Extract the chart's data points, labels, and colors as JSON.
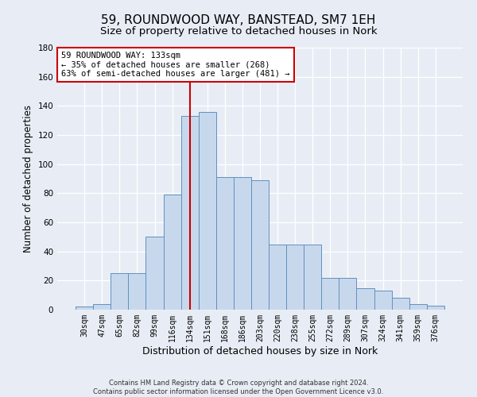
{
  "title": "59, ROUNDWOOD WAY, BANSTEAD, SM7 1EH",
  "subtitle": "Size of property relative to detached houses in Nork",
  "xlabel": "Distribution of detached houses by size in Nork",
  "ylabel": "Number of detached properties",
  "categories": [
    "30sqm",
    "47sqm",
    "65sqm",
    "82sqm",
    "99sqm",
    "116sqm",
    "134sqm",
    "151sqm",
    "168sqm",
    "186sqm",
    "203sqm",
    "220sqm",
    "238sqm",
    "255sqm",
    "272sqm",
    "289sqm",
    "307sqm",
    "324sqm",
    "341sqm",
    "359sqm",
    "376sqm"
  ],
  "bar_heights": [
    2,
    4,
    25,
    25,
    50,
    79,
    133,
    136,
    91,
    91,
    89,
    45,
    45,
    45,
    22,
    22,
    15,
    13,
    8,
    4,
    3
  ],
  "bar_color": "#c8d8ec",
  "bar_edge_color": "#6090c0",
  "vline_color": "#cc0000",
  "annotation_text": "59 ROUNDWOOD WAY: 133sqm\n← 35% of detached houses are smaller (268)\n63% of semi-detached houses are larger (481) →",
  "annotation_box_color": "#ffffff",
  "annotation_box_edge": "#cc0000",
  "ylim": [
    0,
    180
  ],
  "yticks": [
    0,
    20,
    40,
    60,
    80,
    100,
    120,
    140,
    160,
    180
  ],
  "bg_color": "#e8edf5",
  "plot_bg_color": "#e8edf5",
  "footer1": "Contains HM Land Registry data © Crown copyright and database right 2024.",
  "footer2": "Contains public sector information licensed under the Open Government Licence v3.0.",
  "title_fontsize": 11,
  "subtitle_fontsize": 9.5,
  "xlabel_fontsize": 9,
  "ylabel_fontsize": 8.5
}
